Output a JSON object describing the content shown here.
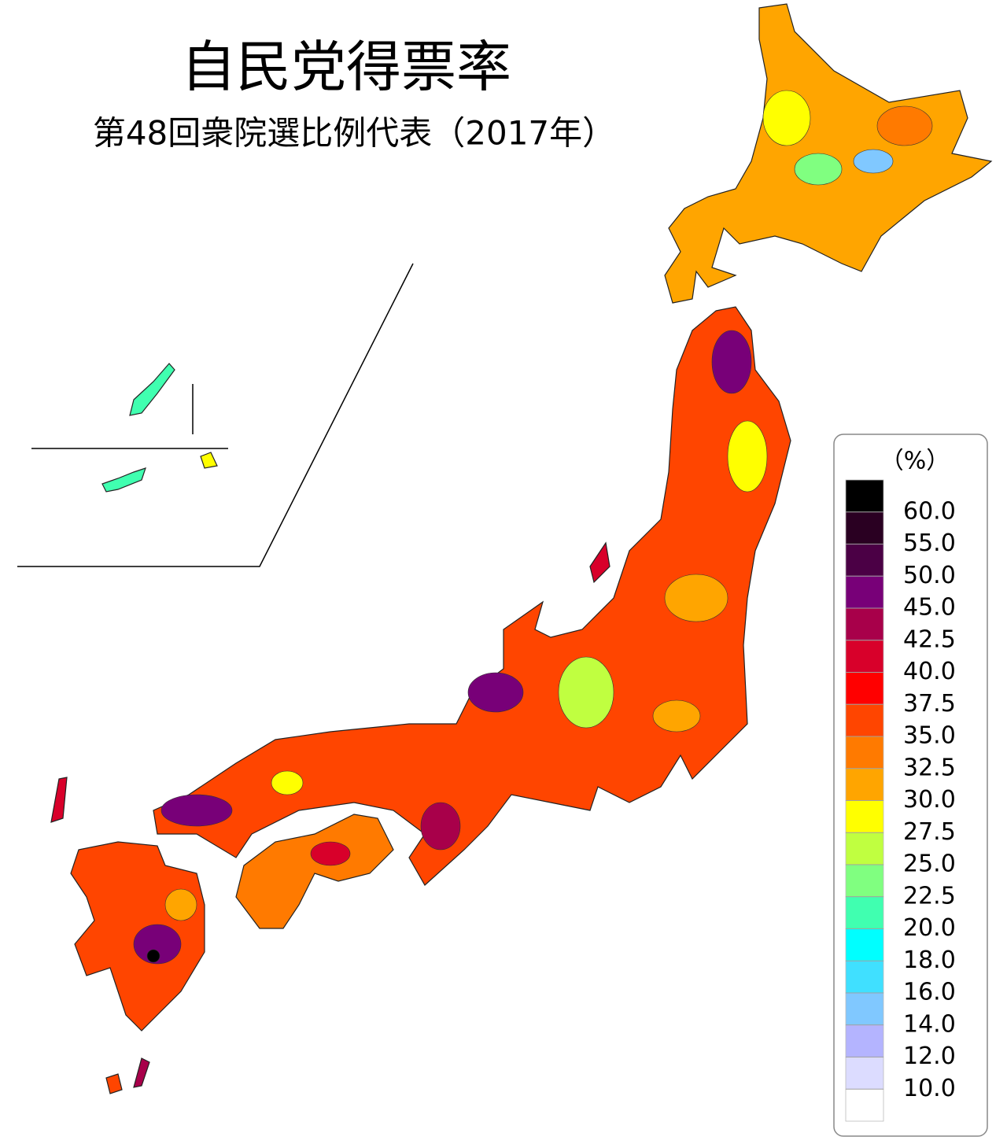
{
  "title": "自民党得票率",
  "subtitle": "第48回衆院選比例代表（2017年）",
  "legend": {
    "unit": "（%）",
    "colors": [
      "#000000",
      "#2a0022",
      "#4b0045",
      "#780078",
      "#a8004a",
      "#d8002a",
      "#ff0000",
      "#ff4500",
      "#ff7a00",
      "#ffa500",
      "#ffff00",
      "#c0ff40",
      "#80ff80",
      "#40ffb0",
      "#00ffff",
      "#40e0ff",
      "#80c8ff",
      "#b4b4ff",
      "#dcdcff",
      "#ffffff"
    ],
    "breaks": [
      {
        "value": 60,
        "label": "60.0"
      },
      {
        "value": 55,
        "label": "55.0"
      },
      {
        "value": 50,
        "label": "50.0"
      },
      {
        "value": 45,
        "label": "45.0"
      },
      42.5,
      {
        "value": 40,
        "label": "40.0"
      },
      37.5,
      {
        "value": 35,
        "label": "35.0"
      },
      32.5,
      {
        "value": 30,
        "label": "30.0"
      },
      27.5,
      {
        "value": 25,
        "label": "25.0"
      },
      22.5,
      {
        "value": 20,
        "label": "20.0"
      },
      {
        "value": 18,
        "label": "18.0"
      },
      {
        "value": 16,
        "label": "16.0"
      },
      {
        "value": 14,
        "label": "14.0"
      },
      {
        "value": 12,
        "label": "12.0"
      },
      {
        "value": 10,
        "label": "10.0"
      }
    ]
  }
}
